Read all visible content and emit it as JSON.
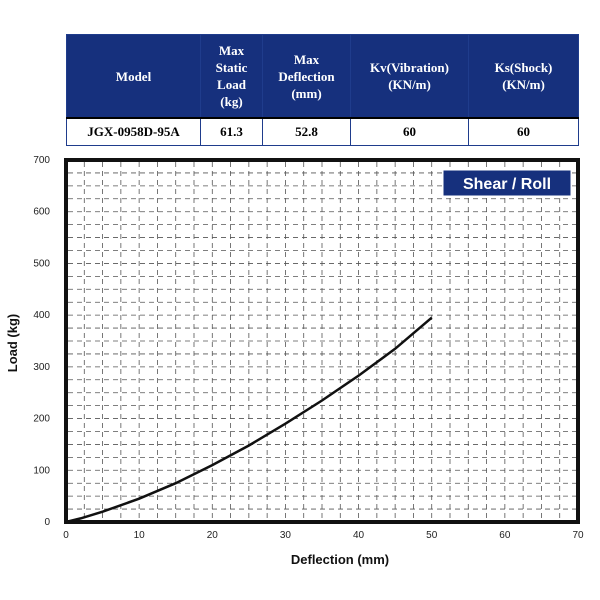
{
  "table": {
    "headers": [
      "Model",
      "Max\nStatic\nLoad\n(kg)",
      "Max\nDeflection\n(mm)",
      "Kv(Vibration)\n(KN/m)",
      "Ks(Shock)\n(KN/m)"
    ],
    "row": [
      "JGX-0958D-95A",
      "61.3",
      "52.8",
      "60",
      "60"
    ]
  },
  "chart_data": {
    "type": "line",
    "title": "Shear / Roll",
    "xlabel": "Deflection (mm)",
    "ylabel": "Load (kg)",
    "xlim": [
      0,
      70
    ],
    "ylim": [
      0,
      700
    ],
    "xticks": [
      "0",
      "10",
      "20",
      "30",
      "40",
      "50",
      "60",
      "70"
    ],
    "yticks": [
      "0",
      "100",
      "200",
      "300",
      "400",
      "500",
      "600",
      "700"
    ],
    "grid": true,
    "series": [
      {
        "x": [
          0,
          2,
          5,
          10,
          15,
          20,
          25,
          30,
          35,
          40,
          45,
          50
        ],
        "y": [
          0,
          7,
          20,
          45,
          75,
          110,
          148,
          190,
          235,
          283,
          335,
          395
        ]
      }
    ],
    "colors": {
      "header_bg": "#16307d",
      "badge_bg": "#16307d",
      "line": "#111111"
    }
  }
}
